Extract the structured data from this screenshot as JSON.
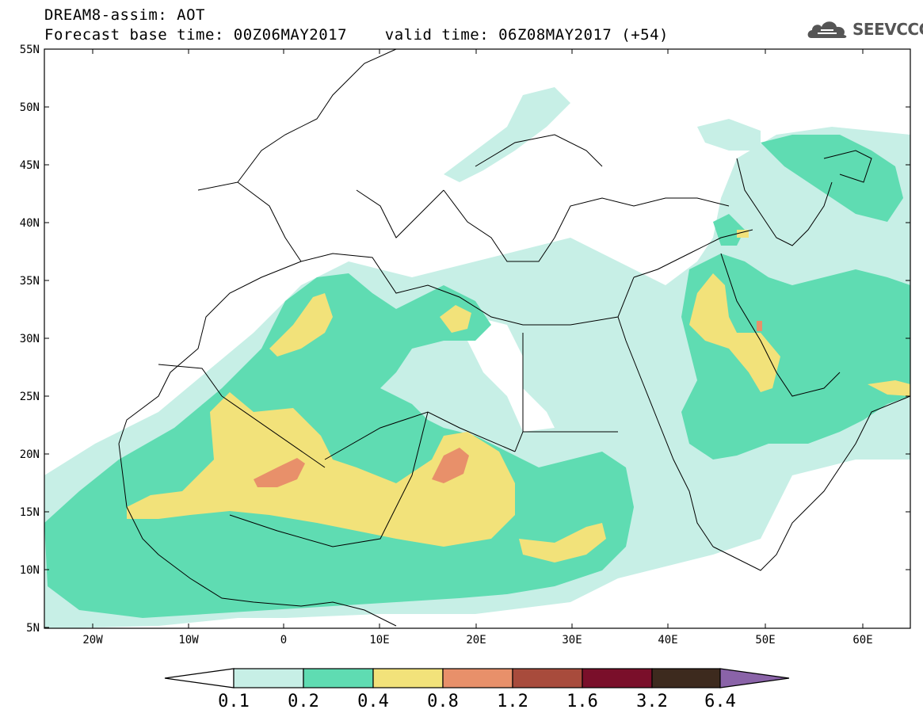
{
  "header": {
    "line1": "DREAM8-assim: AOT",
    "line2": "Forecast base time: 00Z06MAY2017    valid time: 06Z08MAY2017 (+54)",
    "logo_text": "SEEVCCC",
    "logo_icon": "cloud-logo-icon"
  },
  "map": {
    "lon_range": [
      -25,
      65
    ],
    "lat_range": [
      5,
      55
    ],
    "lat_labels": [
      "55N",
      "50N",
      "45N",
      "40N",
      "35N",
      "30N",
      "25N",
      "20N",
      "15N",
      "10N",
      "5N"
    ],
    "lon_labels": [
      "20W",
      "10W",
      "0",
      "10E",
      "20E",
      "30E",
      "40E",
      "50E",
      "60E"
    ]
  },
  "colorbar": {
    "labels": [
      "0.1",
      "0.2",
      "0.4",
      "0.8",
      "1.2",
      "1.6",
      "3.2",
      "6.4"
    ],
    "colors": [
      "#ffffff",
      "#c7efe6",
      "#5fdcb2",
      "#f2e27a",
      "#e8906a",
      "#a84b3c",
      "#7a0f2a",
      "#3d2a1e",
      "#8a63a8"
    ]
  }
}
